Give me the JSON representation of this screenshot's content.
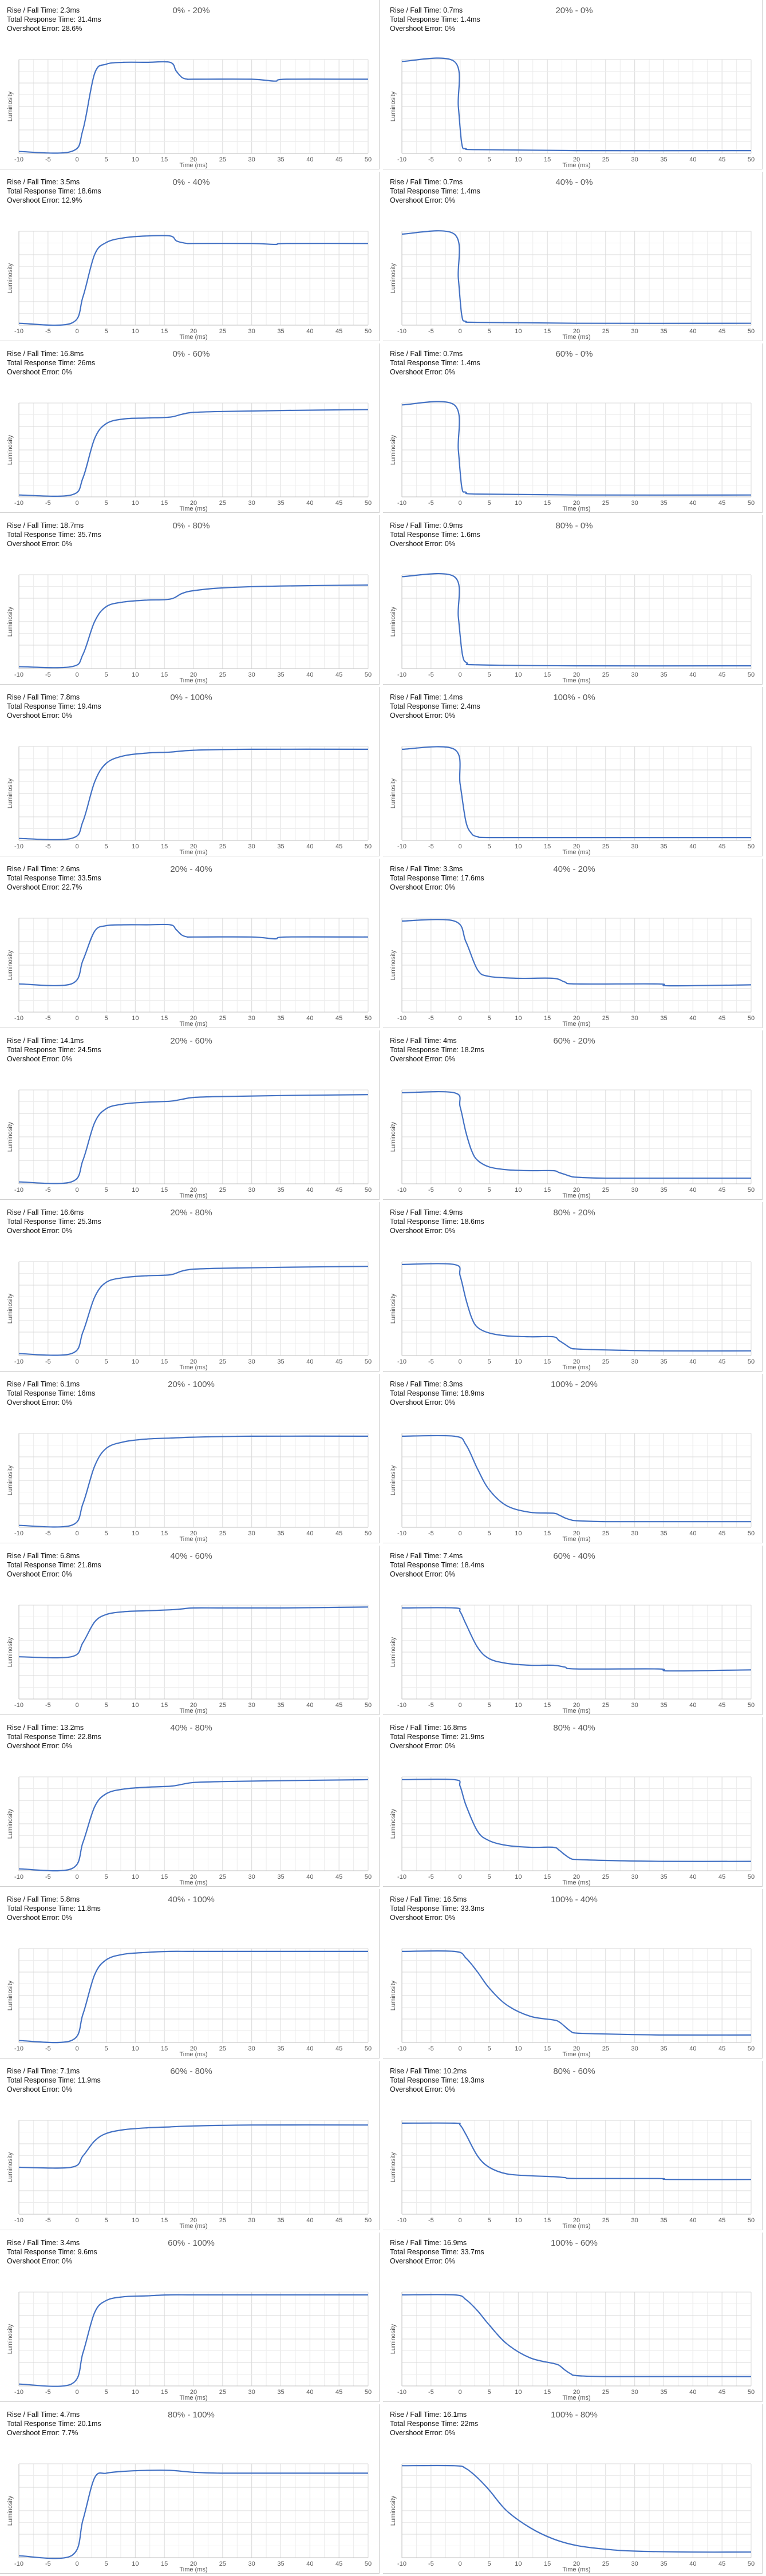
{
  "axes": {
    "xlabel": "Time (ms)",
    "ylabel": "Luminosity",
    "xticks": [
      "-10",
      "-5",
      "0",
      "5",
      "10",
      "15",
      "20",
      "25",
      "30",
      "35",
      "40",
      "45",
      "50"
    ]
  },
  "labels": {
    "rise_fall": "Rise / Fall Time: ",
    "total": "Total Response Time: ",
    "overshoot": "Overshoot Error: "
  },
  "colors": {
    "line": "#4472C4",
    "grid": "#e3e3e3",
    "axis": "#bfbfbf"
  },
  "chart_data": [
    {
      "type": "line",
      "title": "0% - 20%",
      "rise_fall_time": "2.3ms",
      "total_response_time": "31.4ms",
      "overshoot_error": "28.6%",
      "xlim": [
        -10,
        50
      ],
      "x": [
        -10,
        -1,
        1,
        3,
        5,
        8,
        12,
        16,
        17,
        18,
        19,
        20,
        30,
        34,
        36,
        50
      ],
      "y": [
        0.02,
        0.02,
        0.25,
        0.85,
        0.95,
        0.97,
        0.97,
        0.97,
        0.88,
        0.81,
        0.79,
        0.79,
        0.79,
        0.77,
        0.79,
        0.79
      ]
    },
    {
      "type": "line",
      "title": "20% - 0%",
      "rise_fall_time": "0.7ms",
      "total_response_time": "1.4ms",
      "overshoot_error": "0%",
      "xlim": [
        -10,
        50
      ],
      "x": [
        -10,
        -1,
        -0.3,
        0.3,
        1,
        3,
        20,
        50
      ],
      "y": [
        0.98,
        0.98,
        0.5,
        0.1,
        0.05,
        0.04,
        0.03,
        0.03
      ]
    },
    {
      "type": "line",
      "title": "0% - 40%",
      "rise_fall_time": "3.5ms",
      "total_response_time": "18.6ms",
      "overshoot_error": "12.9%",
      "xlim": [
        -10,
        50
      ],
      "x": [
        -10,
        -1,
        1,
        3,
        5,
        8,
        12,
        16,
        17,
        18,
        19,
        20,
        30,
        34,
        36,
        50
      ],
      "y": [
        0.02,
        0.02,
        0.3,
        0.75,
        0.88,
        0.93,
        0.95,
        0.95,
        0.9,
        0.88,
        0.87,
        0.87,
        0.87,
        0.86,
        0.87,
        0.87
      ]
    },
    {
      "type": "line",
      "title": "40% - 0%",
      "rise_fall_time": "0.7ms",
      "total_response_time": "1.4ms",
      "overshoot_error": "0%",
      "xlim": [
        -10,
        50
      ],
      "x": [
        -10,
        -1,
        -0.3,
        0.3,
        1,
        3,
        20,
        50
      ],
      "y": [
        0.97,
        0.97,
        0.5,
        0.1,
        0.04,
        0.03,
        0.02,
        0.02
      ]
    },
    {
      "type": "line",
      "title": "0% - 60%",
      "rise_fall_time": "16.8ms",
      "total_response_time": "26ms",
      "overshoot_error": "0%",
      "xlim": [
        -10,
        50
      ],
      "x": [
        -10,
        -1,
        1,
        3,
        5,
        8,
        12,
        16,
        18,
        20,
        25,
        35,
        50
      ],
      "y": [
        0.02,
        0.02,
        0.2,
        0.62,
        0.78,
        0.83,
        0.84,
        0.85,
        0.88,
        0.9,
        0.91,
        0.92,
        0.93
      ]
    },
    {
      "type": "line",
      "title": "60% - 0%",
      "rise_fall_time": "0.7ms",
      "total_response_time": "1.4ms",
      "overshoot_error": "0%",
      "xlim": [
        -10,
        50
      ],
      "x": [
        -10,
        -1,
        -0.3,
        0.3,
        1,
        3,
        20,
        50
      ],
      "y": [
        0.98,
        0.98,
        0.5,
        0.1,
        0.05,
        0.03,
        0.02,
        0.02
      ]
    },
    {
      "type": "line",
      "title": "0% - 80%",
      "rise_fall_time": "18.7ms",
      "total_response_time": "35.7ms",
      "overshoot_error": "0%",
      "xlim": [
        -10,
        50
      ],
      "x": [
        -10,
        -1,
        1,
        3,
        5,
        8,
        12,
        16,
        18,
        20,
        25,
        35,
        50
      ],
      "y": [
        0.02,
        0.02,
        0.15,
        0.5,
        0.66,
        0.71,
        0.73,
        0.74,
        0.8,
        0.83,
        0.86,
        0.88,
        0.89
      ]
    },
    {
      "type": "line",
      "title": "80% - 0%",
      "rise_fall_time": "0.9ms",
      "total_response_time": "1.6ms",
      "overshoot_error": "0%",
      "xlim": [
        -10,
        50
      ],
      "x": [
        -10,
        -1,
        -0.3,
        0.4,
        1.2,
        3,
        20,
        50
      ],
      "y": [
        0.98,
        0.98,
        0.55,
        0.15,
        0.06,
        0.04,
        0.03,
        0.03
      ]
    },
    {
      "type": "line",
      "title": "0% - 100%",
      "rise_fall_time": "7.8ms",
      "total_response_time": "19.4ms",
      "overshoot_error": "0%",
      "xlim": [
        -10,
        50
      ],
      "x": [
        -10,
        -1,
        1,
        3,
        5,
        8,
        12,
        16,
        20,
        30,
        50
      ],
      "y": [
        0.02,
        0.02,
        0.2,
        0.62,
        0.82,
        0.9,
        0.93,
        0.94,
        0.96,
        0.97,
        0.97
      ]
    },
    {
      "type": "line",
      "title": "100% - 0%",
      "rise_fall_time": "1.4ms",
      "total_response_time": "2.4ms",
      "overshoot_error": "0%",
      "xlim": [
        -10,
        50
      ],
      "x": [
        -10,
        -1,
        0,
        1,
        2,
        3,
        5,
        20,
        50
      ],
      "y": [
        0.97,
        0.97,
        0.6,
        0.2,
        0.07,
        0.04,
        0.03,
        0.03,
        0.03
      ]
    },
    {
      "type": "line",
      "title": "20% - 40%",
      "rise_fall_time": "2.6ms",
      "total_response_time": "33.5ms",
      "overshoot_error": "22.7%",
      "xlim": [
        -10,
        50
      ],
      "x": [
        -10,
        -1,
        1,
        3,
        5,
        8,
        12,
        16,
        17,
        18,
        19,
        20,
        30,
        34,
        36,
        50
      ],
      "y": [
        0.3,
        0.3,
        0.55,
        0.86,
        0.92,
        0.93,
        0.93,
        0.93,
        0.88,
        0.82,
        0.8,
        0.8,
        0.8,
        0.78,
        0.8,
        0.8
      ]
    },
    {
      "type": "line",
      "title": "40% - 20%",
      "rise_fall_time": "3.3ms",
      "total_response_time": "17.6ms",
      "overshoot_error": "0%",
      "xlim": [
        -10,
        50
      ],
      "x": [
        -10,
        -1,
        1,
        3,
        5,
        10,
        16,
        18,
        20,
        34,
        36,
        50
      ],
      "y": [
        0.97,
        0.97,
        0.75,
        0.45,
        0.38,
        0.36,
        0.36,
        0.32,
        0.3,
        0.3,
        0.28,
        0.29
      ]
    },
    {
      "type": "line",
      "title": "20% - 60%",
      "rise_fall_time": "14.1ms",
      "total_response_time": "24.5ms",
      "overshoot_error": "0%",
      "xlim": [
        -10,
        50
      ],
      "x": [
        -10,
        -1,
        1,
        3,
        5,
        8,
        12,
        16,
        18,
        20,
        25,
        35,
        50
      ],
      "y": [
        0.02,
        0.02,
        0.25,
        0.65,
        0.8,
        0.85,
        0.87,
        0.88,
        0.9,
        0.92,
        0.93,
        0.94,
        0.95
      ]
    },
    {
      "type": "line",
      "title": "60% - 20%",
      "rise_fall_time": "4ms",
      "total_response_time": "18.2ms",
      "overshoot_error": "0%",
      "xlim": [
        -10,
        50
      ],
      "x": [
        -10,
        -1,
        0,
        1,
        2,
        3,
        5,
        8,
        12,
        16,
        17,
        18,
        19,
        20,
        25,
        35,
        50
      ],
      "y": [
        0.97,
        0.97,
        0.82,
        0.55,
        0.35,
        0.25,
        0.18,
        0.15,
        0.14,
        0.14,
        0.12,
        0.1,
        0.08,
        0.07,
        0.06,
        0.06,
        0.06
      ]
    },
    {
      "type": "line",
      "title": "20% - 80%",
      "rise_fall_time": "16.6ms",
      "total_response_time": "25.3ms",
      "overshoot_error": "0%",
      "xlim": [
        -10,
        50
      ],
      "x": [
        -10,
        -1,
        1,
        3,
        5,
        8,
        12,
        16,
        18,
        20,
        25,
        35,
        50
      ],
      "y": [
        0.02,
        0.02,
        0.25,
        0.62,
        0.78,
        0.83,
        0.85,
        0.86,
        0.9,
        0.92,
        0.93,
        0.94,
        0.95
      ]
    },
    {
      "type": "line",
      "title": "80% - 20%",
      "rise_fall_time": "4.9ms",
      "total_response_time": "18.6ms",
      "overshoot_error": "0%",
      "xlim": [
        -10,
        50
      ],
      "x": [
        -10,
        -1,
        0,
        1,
        2,
        3,
        5,
        8,
        12,
        16,
        17,
        18,
        19,
        20,
        25,
        35,
        50
      ],
      "y": [
        0.97,
        0.97,
        0.85,
        0.6,
        0.4,
        0.3,
        0.24,
        0.21,
        0.2,
        0.2,
        0.16,
        0.12,
        0.08,
        0.07,
        0.06,
        0.05,
        0.05
      ]
    },
    {
      "type": "line",
      "title": "20% - 100%",
      "rise_fall_time": "6.1ms",
      "total_response_time": "16ms",
      "overshoot_error": "0%",
      "xlim": [
        -10,
        50
      ],
      "x": [
        -10,
        -1,
        1,
        3,
        5,
        8,
        12,
        16,
        20,
        30,
        50
      ],
      "y": [
        0.02,
        0.02,
        0.25,
        0.65,
        0.84,
        0.91,
        0.94,
        0.95,
        0.96,
        0.97,
        0.97
      ]
    },
    {
      "type": "line",
      "title": "100% - 20%",
      "rise_fall_time": "8.3ms",
      "total_response_time": "18.9ms",
      "overshoot_error": "0%",
      "xlim": [
        -10,
        50
      ],
      "x": [
        -10,
        -1,
        1,
        3,
        5,
        8,
        12,
        16,
        17,
        18,
        19,
        20,
        25,
        35,
        50
      ],
      "y": [
        0.97,
        0.97,
        0.88,
        0.62,
        0.4,
        0.23,
        0.16,
        0.15,
        0.13,
        0.1,
        0.08,
        0.07,
        0.06,
        0.06,
        0.06
      ]
    },
    {
      "type": "line",
      "title": "40% - 60%",
      "rise_fall_time": "6.8ms",
      "total_response_time": "21.8ms",
      "overshoot_error": "0%",
      "xlim": [
        -10,
        50
      ],
      "x": [
        -10,
        -1,
        1,
        3,
        5,
        8,
        12,
        16,
        18,
        20,
        25,
        35,
        50
      ],
      "y": [
        0.45,
        0.45,
        0.6,
        0.82,
        0.9,
        0.93,
        0.94,
        0.95,
        0.96,
        0.97,
        0.97,
        0.97,
        0.98
      ]
    },
    {
      "type": "line",
      "title": "60% - 40%",
      "rise_fall_time": "7.4ms",
      "total_response_time": "18.4ms",
      "overshoot_error": "0%",
      "xlim": [
        -10,
        50
      ],
      "x": [
        -10,
        -1,
        0,
        1,
        3,
        5,
        8,
        12,
        16,
        18,
        20,
        34,
        36,
        50
      ],
      "y": [
        0.97,
        0.97,
        0.93,
        0.8,
        0.55,
        0.43,
        0.38,
        0.36,
        0.36,
        0.34,
        0.32,
        0.32,
        0.3,
        0.31
      ]
    },
    {
      "type": "line",
      "title": "40% - 80%",
      "rise_fall_time": "13.2ms",
      "total_response_time": "22.8ms",
      "overshoot_error": "0%",
      "xlim": [
        -10,
        50
      ],
      "x": [
        -10,
        -1,
        1,
        3,
        5,
        8,
        12,
        16,
        18,
        20,
        25,
        35,
        50
      ],
      "y": [
        0.02,
        0.02,
        0.3,
        0.68,
        0.82,
        0.87,
        0.89,
        0.9,
        0.92,
        0.94,
        0.95,
        0.96,
        0.97
      ]
    },
    {
      "type": "line",
      "title": "80% - 40%",
      "rise_fall_time": "16.8ms",
      "total_response_time": "21.9ms",
      "overshoot_error": "0%",
      "xlim": [
        -10,
        50
      ],
      "x": [
        -10,
        -1,
        0,
        1,
        3,
        5,
        8,
        12,
        16,
        17,
        18,
        19,
        20,
        25,
        35,
        50
      ],
      "y": [
        0.97,
        0.97,
        0.9,
        0.7,
        0.42,
        0.32,
        0.27,
        0.25,
        0.25,
        0.22,
        0.17,
        0.13,
        0.12,
        0.11,
        0.1,
        0.1
      ]
    },
    {
      "type": "line",
      "title": "40% - 100%",
      "rise_fall_time": "5.8ms",
      "total_response_time": "11.8ms",
      "overshoot_error": "0%",
      "xlim": [
        -10,
        50
      ],
      "x": [
        -10,
        -1,
        1,
        3,
        5,
        8,
        12,
        16,
        20,
        30,
        50
      ],
      "y": [
        0.02,
        0.02,
        0.3,
        0.72,
        0.88,
        0.94,
        0.96,
        0.97,
        0.97,
        0.97,
        0.97
      ]
    },
    {
      "type": "line",
      "title": "100% - 40%",
      "rise_fall_time": "16.5ms",
      "total_response_time": "33.3ms",
      "overshoot_error": "0%",
      "xlim": [
        -10,
        50
      ],
      "x": [
        -10,
        -1,
        1,
        3,
        5,
        8,
        12,
        16,
        17,
        18,
        19,
        20,
        25,
        35,
        50
      ],
      "y": [
        0.97,
        0.97,
        0.9,
        0.75,
        0.58,
        0.4,
        0.28,
        0.24,
        0.22,
        0.17,
        0.12,
        0.1,
        0.09,
        0.08,
        0.08
      ]
    },
    {
      "type": "line",
      "title": "60% - 80%",
      "rise_fall_time": "7.1ms",
      "total_response_time": "11.9ms",
      "overshoot_error": "0%",
      "xlim": [
        -10,
        50
      ],
      "x": [
        -10,
        -1,
        1,
        3,
        5,
        8,
        12,
        16,
        20,
        30,
        50
      ],
      "y": [
        0.5,
        0.5,
        0.62,
        0.78,
        0.86,
        0.9,
        0.92,
        0.93,
        0.94,
        0.95,
        0.95
      ]
    },
    {
      "type": "line",
      "title": "80% - 60%",
      "rise_fall_time": "10.2ms",
      "total_response_time": "19.3ms",
      "overshoot_error": "0%",
      "xlim": [
        -10,
        50
      ],
      "x": [
        -10,
        -1,
        0,
        1,
        3,
        5,
        8,
        12,
        16,
        18,
        20,
        34,
        36,
        50
      ],
      "y": [
        0.97,
        0.97,
        0.95,
        0.85,
        0.62,
        0.5,
        0.43,
        0.41,
        0.4,
        0.39,
        0.38,
        0.38,
        0.37,
        0.37
      ]
    },
    {
      "type": "line",
      "title": "60% - 100%",
      "rise_fall_time": "3.4ms",
      "total_response_time": "9.6ms",
      "overshoot_error": "0%",
      "xlim": [
        -10,
        50
      ],
      "x": [
        -10,
        -1,
        1,
        3,
        5,
        8,
        12,
        16,
        20,
        30,
        50
      ],
      "y": [
        0.02,
        0.02,
        0.35,
        0.78,
        0.91,
        0.95,
        0.96,
        0.97,
        0.97,
        0.97,
        0.97
      ]
    },
    {
      "type": "line",
      "title": "100% - 60%",
      "rise_fall_time": "16.9ms",
      "total_response_time": "33.7ms",
      "overshoot_error": "0%",
      "xlim": [
        -10,
        50
      ],
      "x": [
        -10,
        -1,
        1,
        3,
        5,
        8,
        12,
        16,
        17,
        18,
        19,
        20,
        25,
        35,
        50
      ],
      "y": [
        0.97,
        0.97,
        0.92,
        0.8,
        0.65,
        0.45,
        0.3,
        0.24,
        0.22,
        0.17,
        0.13,
        0.11,
        0.1,
        0.1,
        0.1
      ]
    },
    {
      "type": "line",
      "title": "80% - 100%",
      "rise_fall_time": "4.7ms",
      "total_response_time": "20.1ms",
      "overshoot_error": "7.7%",
      "xlim": [
        -10,
        50
      ],
      "x": [
        -10,
        -1,
        1,
        3,
        5,
        8,
        12,
        16,
        20,
        25,
        35,
        50
      ],
      "y": [
        0.02,
        0.02,
        0.4,
        0.85,
        0.9,
        0.92,
        0.93,
        0.93,
        0.91,
        0.9,
        0.9,
        0.9
      ]
    },
    {
      "type": "line",
      "title": "100% - 80%",
      "rise_fall_time": "16.1ms",
      "total_response_time": "22ms",
      "overshoot_error": "0%",
      "xlim": [
        -10,
        50
      ],
      "x": [
        -10,
        -1,
        1,
        3,
        5,
        8,
        12,
        16,
        20,
        25,
        30,
        40,
        50
      ],
      "y": [
        0.98,
        0.98,
        0.95,
        0.85,
        0.72,
        0.5,
        0.32,
        0.2,
        0.13,
        0.09,
        0.07,
        0.06,
        0.06
      ]
    }
  ]
}
